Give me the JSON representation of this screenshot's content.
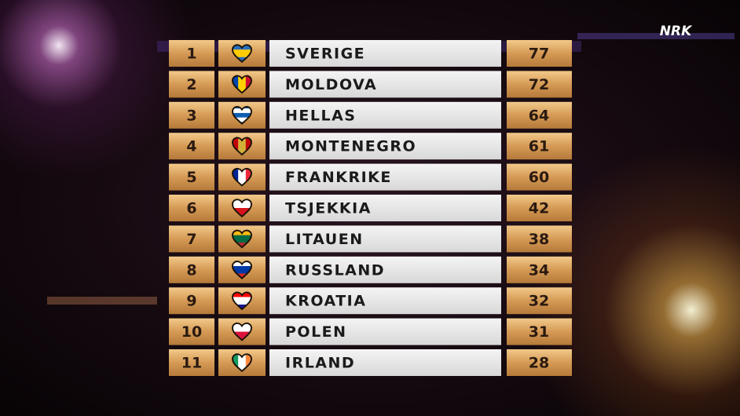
{
  "logo": "NRK",
  "table": {
    "rows": [
      [
        1,
        "SVERIGE",
        77
      ],
      [
        2,
        "MOLDOVA",
        72
      ],
      [
        3,
        "HELLAS",
        64
      ],
      [
        4,
        "MONTENEGRO",
        61
      ],
      [
        5,
        "FRANKRIKE",
        60
      ],
      [
        6,
        "TSJEKKIA",
        42
      ],
      [
        7,
        "LITAUEN",
        38
      ],
      [
        8,
        "RUSSLAND",
        34
      ],
      [
        9,
        "KROATIA",
        32
      ],
      [
        10,
        "POLEN",
        31
      ],
      [
        11,
        "IRLAND",
        28
      ]
    ]
  }
}
